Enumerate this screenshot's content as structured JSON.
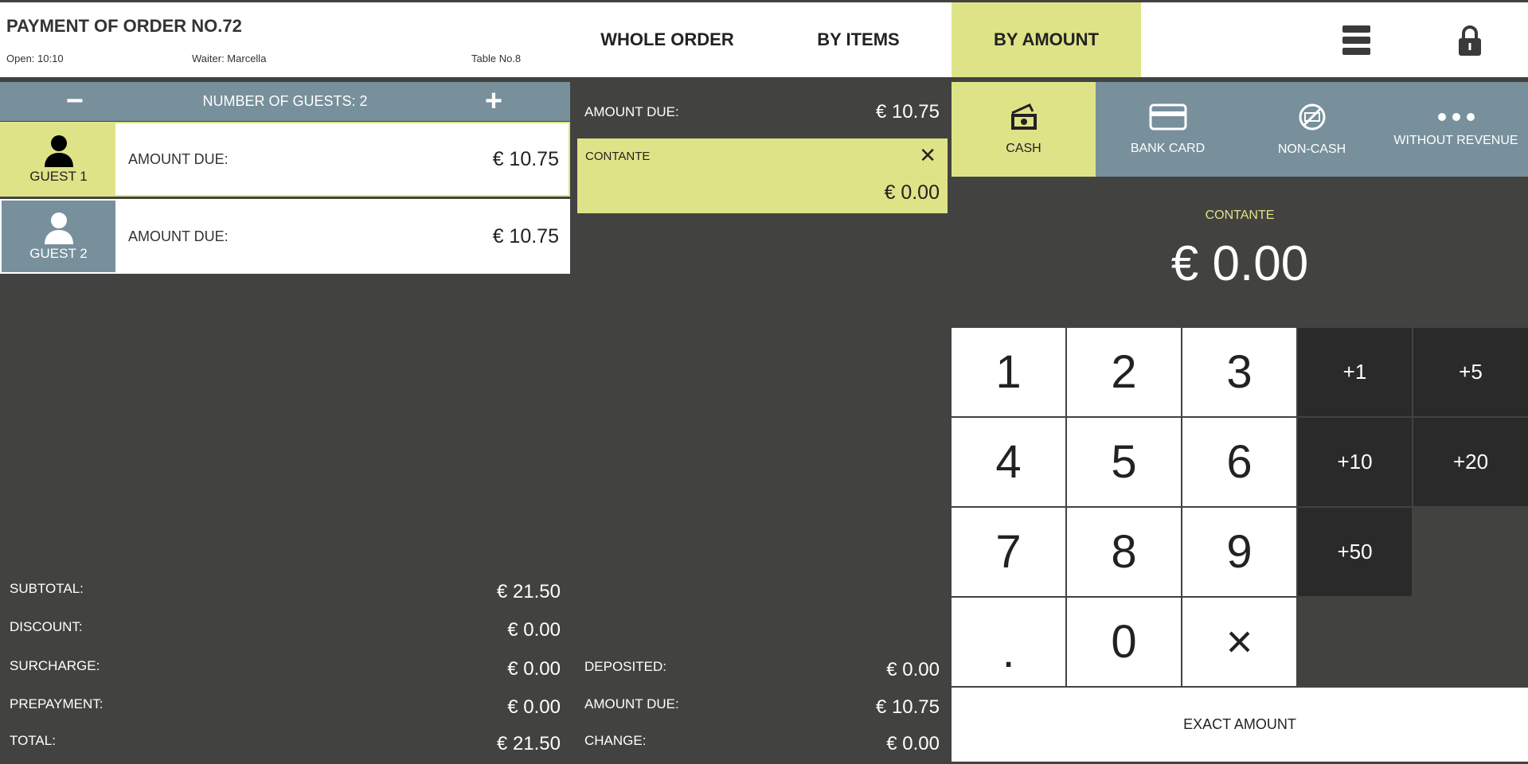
{
  "header": {
    "title": "PAYMENT OF ORDER NO.72",
    "open": "Open: 10:10",
    "waiter": "Waiter: Marcella",
    "table": "Table No.8",
    "tabs": [
      "WHOLE ORDER",
      "BY ITEMS",
      "BY AMOUNT"
    ],
    "active_tab": "BY AMOUNT",
    "menu_icon": "hamburger-icon",
    "lock_icon": "lock-icon"
  },
  "guests": {
    "minus": "−",
    "plus": "+",
    "label": "NUMBER OF GUESTS: 2",
    "items": [
      {
        "name": "GUEST 1",
        "label": "AMOUNT DUE:",
        "value": "€ 10.75",
        "selected": true
      },
      {
        "name": "GUEST 2",
        "label": "AMOUNT DUE:",
        "value": "€ 10.75",
        "selected": false
      }
    ]
  },
  "totals": [
    {
      "label": "SUBTOTAL:",
      "value": "€ 21.50"
    },
    {
      "label": "DISCOUNT:",
      "value": "€ 0.00"
    },
    {
      "label": "SURCHARGE:",
      "value": "€ 0.00"
    },
    {
      "label": "PREPAYMENT:",
      "value": "€ 0.00"
    },
    {
      "label": "TOTAL:",
      "value": "€ 21.50"
    }
  ],
  "middle": {
    "amount_due_label": "AMOUNT DUE:",
    "amount_due": "€ 10.75",
    "payment": {
      "name": "CONTANTE",
      "amount": "€ 0.00",
      "close": "✕"
    },
    "summary": [
      {
        "label": "DEPOSITED:",
        "value": "€ 0.00"
      },
      {
        "label": "AMOUNT DUE:",
        "value": "€ 10.75"
      },
      {
        "label": "CHANGE:",
        "value": "€ 0.00"
      }
    ]
  },
  "methods": [
    {
      "label": "CASH",
      "icon": "cash-icon",
      "active": true
    },
    {
      "label": "BANK CARD",
      "icon": "card-icon"
    },
    {
      "label": "NON-CASH",
      "icon": "non-cash-icon"
    },
    {
      "label": "WITHOUT REVENUE",
      "icon": "more-icon"
    }
  ],
  "display": {
    "label": "CONTANTE",
    "amount": "€ 0.00"
  },
  "keypad": {
    "keys": [
      "1",
      "2",
      "3",
      "4",
      "5",
      "6",
      "7",
      "8",
      "9",
      ".",
      "0",
      "×"
    ],
    "quick": [
      "+1",
      "+5",
      "+10",
      "+20",
      "+50"
    ],
    "exact": "EXACT AMOUNT"
  },
  "colors": {
    "accent": "#dfe387",
    "slate": "#78909c",
    "background": "#424340",
    "dark_key": "#2a2a2a"
  }
}
